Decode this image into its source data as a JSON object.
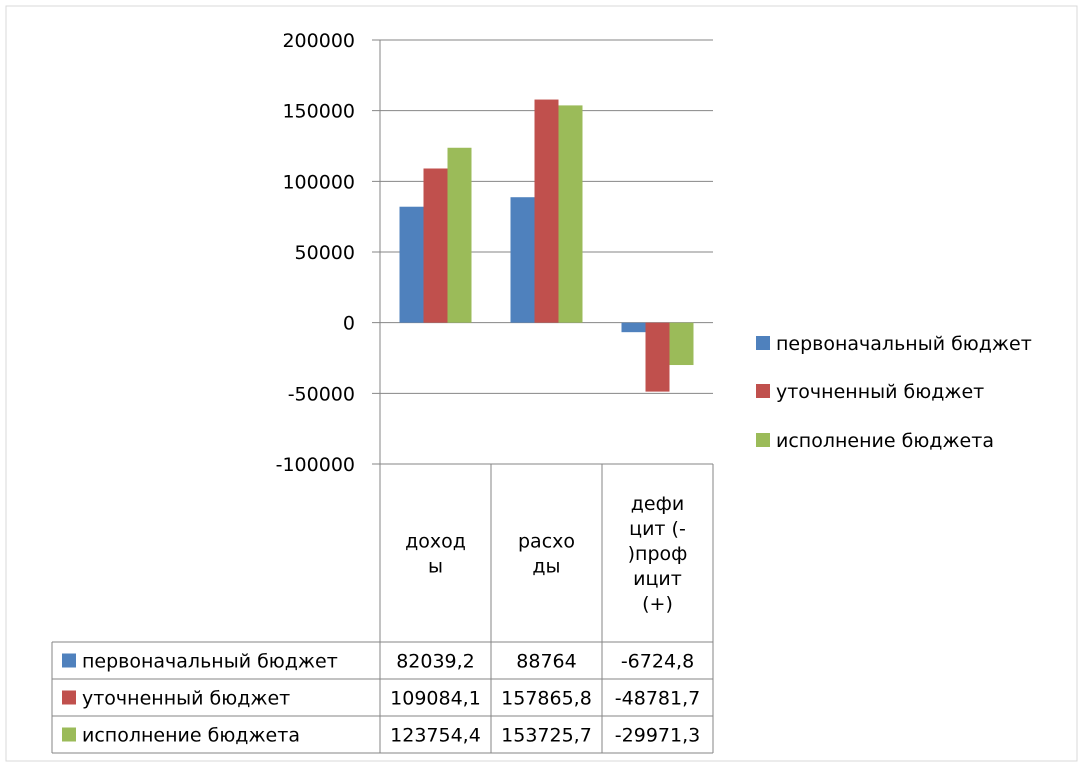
{
  "chart_data": {
    "type": "bar",
    "categories": [
      [
        "доход",
        "ы"
      ],
      [
        "расхо",
        "ды"
      ],
      [
        "дефи",
        "цит (-",
        ")проф",
        "ицит",
        "(+)"
      ]
    ],
    "series": [
      {
        "name": "первоначальный бюджет",
        "color": "#4f81bd",
        "values": [
          82039.2,
          88764,
          -6724.8
        ],
        "labels": [
          "82039,2",
          "88764",
          "-6724,8"
        ]
      },
      {
        "name": "уточненный бюджет",
        "color": "#c0504d",
        "values": [
          109084.1,
          157865.8,
          -48781.7
        ],
        "labels": [
          "109084,1",
          "157865,8",
          "-48781,7"
        ]
      },
      {
        "name": "исполнение бюджета",
        "color": "#9bbb59",
        "values": [
          123754.4,
          153725.7,
          -29971.3
        ],
        "labels": [
          "123754,4",
          "153725,7",
          "-29971,3"
        ]
      }
    ],
    "yticks": [
      200000,
      150000,
      100000,
      50000,
      0,
      -50000,
      -100000
    ],
    "ylim": [
      -100000,
      200000
    ],
    "grid": true,
    "legend": "right",
    "data_table": true
  }
}
